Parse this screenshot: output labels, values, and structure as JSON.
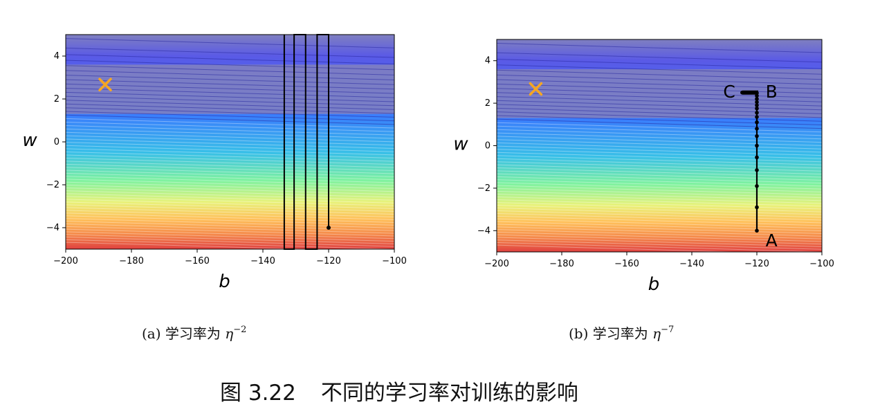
{
  "figure": {
    "caption_label": "图 3.22",
    "caption_text": "不同的学习率对训练的影响"
  },
  "colors": {
    "trajectory": "#000000",
    "optimum_marker": "#f5a623",
    "gradient_stops": [
      "#7f7fc0",
      "#5a5ae6",
      "#3a74ff",
      "#38bfe8",
      "#7ff2a0",
      "#e8f27a",
      "#ffc05a",
      "#f58a4a",
      "#e04040"
    ]
  },
  "chart_data": [
    {
      "type": "line",
      "subcaption_prefix": "(a) 学习率为",
      "subcaption_symbol": "η",
      "subcaption_exponent": "−2",
      "xlabel": "b",
      "ylabel": "w",
      "xlim": [
        -200,
        -100
      ],
      "ylim": [
        -5,
        5
      ],
      "xticks": [
        -200,
        -180,
        -160,
        -140,
        -120,
        -100
      ],
      "xtick_labels": [
        "−200",
        "−180",
        "−160",
        "−140",
        "−120",
        "−100"
      ],
      "yticks": [
        -4,
        -2,
        0,
        2,
        4
      ],
      "ytick_labels": [
        "−4",
        "−2",
        "0",
        "2",
        "4"
      ],
      "background": "contour",
      "optimum": {
        "x": -188,
        "y": 2.67
      },
      "trajectory": [
        {
          "x": -120,
          "y": -4
        },
        {
          "x": -120,
          "y": 5
        },
        {
          "x": -123.5,
          "y": 5
        },
        {
          "x": -123.5,
          "y": -5
        },
        {
          "x": -127,
          "y": -5
        },
        {
          "x": -127,
          "y": 5
        },
        {
          "x": -130.5,
          "y": 5
        },
        {
          "x": -130.5,
          "y": -5
        },
        {
          "x": -133.5,
          "y": -5
        },
        {
          "x": -133.5,
          "y": 5
        }
      ],
      "start_point": {
        "x": -120,
        "y": -4
      },
      "point_labels": []
    },
    {
      "type": "line",
      "subcaption_prefix": "(b) 学习率为",
      "subcaption_symbol": "η",
      "subcaption_exponent": "−7",
      "xlabel": "b",
      "ylabel": "w",
      "xlim": [
        -200,
        -100
      ],
      "ylim": [
        -5,
        5
      ],
      "xticks": [
        -200,
        -180,
        -160,
        -140,
        -120,
        -100
      ],
      "xtick_labels": [
        "−200",
        "−180",
        "−160",
        "−140",
        "−120",
        "−100"
      ],
      "yticks": [
        -4,
        -2,
        0,
        2,
        4
      ],
      "ytick_labels": [
        "−4",
        "−2",
        "0",
        "2",
        "4"
      ],
      "background": "contour",
      "optimum": {
        "x": -188,
        "y": 2.67
      },
      "trajectory": [
        {
          "x": -120,
          "y": -4
        },
        {
          "x": -120,
          "y": -2.9
        },
        {
          "x": -120,
          "y": -1.9
        },
        {
          "x": -120,
          "y": -1.15
        },
        {
          "x": -120,
          "y": -0.55
        },
        {
          "x": -120,
          "y": 0.0
        },
        {
          "x": -120,
          "y": 0.45
        },
        {
          "x": -120,
          "y": 0.8
        },
        {
          "x": -120,
          "y": 1.1
        },
        {
          "x": -120,
          "y": 1.35
        },
        {
          "x": -120,
          "y": 1.55
        },
        {
          "x": -120,
          "y": 1.75
        },
        {
          "x": -120,
          "y": 1.9
        },
        {
          "x": -120,
          "y": 2.05
        },
        {
          "x": -120,
          "y": 2.2
        },
        {
          "x": -120,
          "y": 2.35
        },
        {
          "x": -120,
          "y": 2.48
        },
        {
          "x": -121.5,
          "y": 2.5
        },
        {
          "x": -123,
          "y": 2.5
        },
        {
          "x": -124.5,
          "y": 2.5
        }
      ],
      "start_point": {
        "x": -120,
        "y": -4
      },
      "point_labels": [
        {
          "text": "A",
          "x": -115.5,
          "y": -4.45
        },
        {
          "text": "B",
          "x": -115.5,
          "y": 2.55
        },
        {
          "text": "C",
          "x": -128.5,
          "y": 2.55
        }
      ]
    }
  ]
}
